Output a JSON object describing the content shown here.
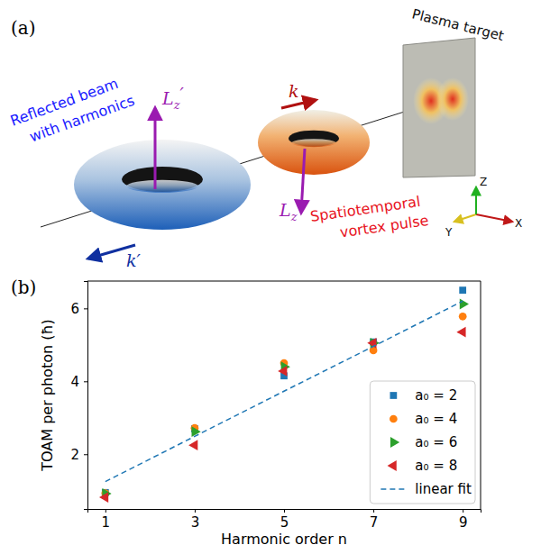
{
  "diagram": {
    "panel_label": "(a)",
    "target_label": "Plasma target",
    "reflected_label": [
      "Reflected beam",
      "with harmonics"
    ],
    "incident_label": [
      "Spatiotemporal",
      "vortex pulse"
    ],
    "incident_k": "k",
    "reflected_k": "k′",
    "incident_L": {
      "base": "L",
      "sub": "z"
    },
    "reflected_L": {
      "base": "L",
      "sub": "z",
      "prime": "′"
    },
    "axis_labels": [
      "X",
      "Y",
      "Z"
    ]
  },
  "chart_data": {
    "panel_label": "(b)",
    "type": "scatter",
    "x_label": "Harmonic order n",
    "y_label": "TOAM per photon (ħ)",
    "x": [
      1,
      3,
      5,
      7,
      9
    ],
    "xlim": [
      0.6,
      9.4
    ],
    "xticks": [
      1,
      3,
      5,
      7,
      9
    ],
    "ylim": [
      0.5,
      6.75
    ],
    "yticks": [
      2,
      4,
      6
    ],
    "legend": "lower right",
    "series": [
      {
        "name": "a₀ = 2",
        "color": "#1f77b4",
        "marker": "square",
        "values": [
          0.95,
          2.7,
          4.15,
          5.08,
          6.5
        ]
      },
      {
        "name": "a₀ = 4",
        "color": "#ff7f0e",
        "marker": "circle",
        "values": [
          0.93,
          2.72,
          4.5,
          4.85,
          5.78
        ]
      },
      {
        "name": "a₀ = 6",
        "color": "#2ca02c",
        "marker": "triangle-right",
        "values": [
          0.92,
          2.62,
          4.4,
          5.05,
          6.12
        ]
      },
      {
        "name": "a₀ = 8",
        "color": "#d62728",
        "marker": "triangle-left",
        "values": [
          0.82,
          2.25,
          4.28,
          5.05,
          5.35
        ]
      },
      {
        "name": "linear fit",
        "color": "#1f77b4",
        "type": "line",
        "line_style": "dashed",
        "values": [
          1.25,
          2.49,
          3.73,
          4.96,
          6.2
        ]
      }
    ]
  }
}
